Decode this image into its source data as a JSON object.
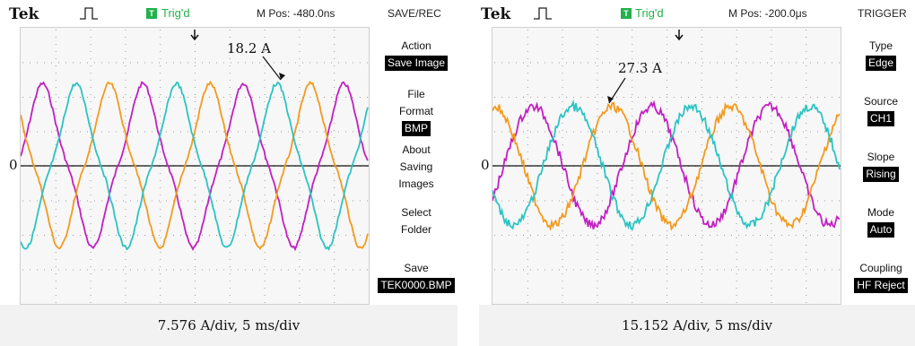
{
  "left_scope": {
    "brand": "Tek",
    "trigger_status": "Trig'd",
    "trigger_icon": "T",
    "m_pos": "M Pos: -480.0ns",
    "menu_title": "SAVE/REC",
    "zero_label": "0",
    "annotation": "18.2 A",
    "footer": "7.576 A/div,  5 ms/div",
    "menu": [
      {
        "label": "Action",
        "value": "Save Image"
      },
      {
        "label": "File Format",
        "value": "BMP"
      },
      {
        "label": "About Saving Images",
        "value": ""
      },
      {
        "label": "Select Folder",
        "value": ""
      },
      {
        "label": "Save",
        "value": "TEK0000.BMP"
      }
    ]
  },
  "right_scope": {
    "brand": "Tek",
    "trigger_status": "Trig'd",
    "trigger_icon": "T",
    "m_pos": "M Pos: -200.0μs",
    "menu_title": "TRIGGER",
    "zero_label": "0",
    "annotation": "27.3 A",
    "footer": "15.152 A/div,  5 ms/div",
    "menu": [
      {
        "label": "Type",
        "value": "Edge"
      },
      {
        "label": "Source",
        "value": "CH1"
      },
      {
        "label": "Slope",
        "value": "Rising"
      },
      {
        "label": "Mode",
        "value": "Auto"
      },
      {
        "label": "Coupling",
        "value": "HF Reject"
      }
    ]
  },
  "colors": {
    "phase_a": "#c21fc2",
    "phase_b": "#f39a1e",
    "phase_c": "#2cc3c3",
    "trig_green": "#22b14c",
    "grid_dot": "#9a9a9a"
  },
  "icons": [
    "pulse-icon",
    "trigger-marker-icon",
    "annotation-arrow-icon"
  ]
}
